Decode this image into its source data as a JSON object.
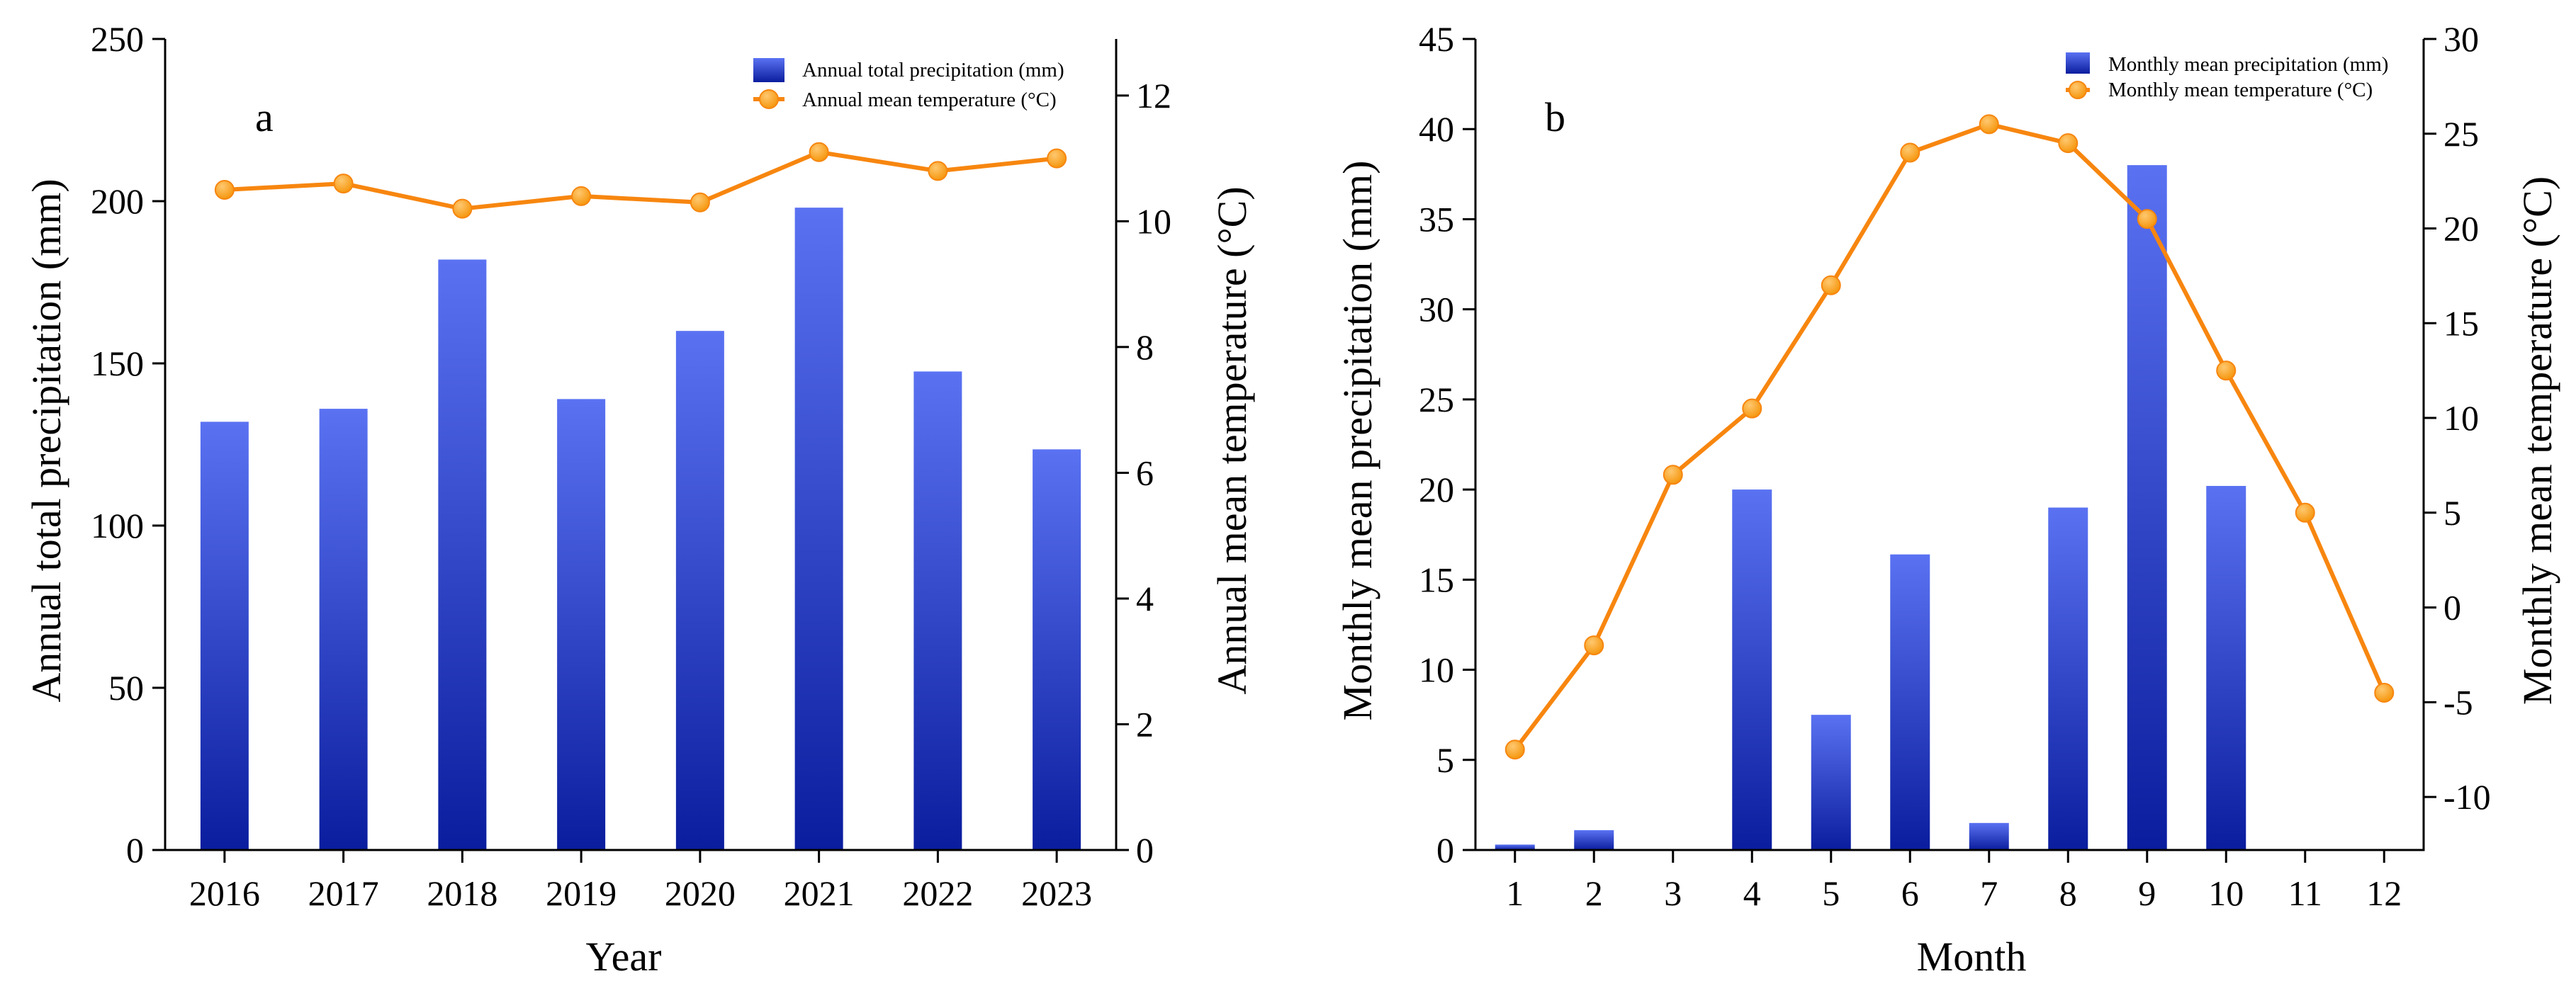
{
  "colors": {
    "bar_light": "#5a72f2",
    "bar_dark": "#0a1d9e",
    "line": "#f7860f",
    "marker_fill": "#f5960c",
    "marker_highlight": "#ffc870"
  },
  "chart_data": [
    {
      "type": "bar",
      "panel_label": "a",
      "categories": [
        "2016",
        "2017",
        "2018",
        "2019",
        "2020",
        "2021",
        "2022",
        "2023"
      ],
      "xlabel": "Year",
      "ylabel": "Annual total precipitation (mm)",
      "ylabel_right": "Annual mean temperature (°C)",
      "ylim": [
        0,
        250
      ],
      "ylim_right": [
        0,
        12.9
      ],
      "yticks": [
        0,
        50,
        100,
        150,
        200,
        250
      ],
      "yticks_right": [
        0,
        2,
        4,
        6,
        8,
        10,
        12
      ],
      "legend_position": "top-right",
      "series": [
        {
          "name": "Annual total precipitation (mm)",
          "kind": "bar",
          "axis": "left",
          "values": [
            132,
            136,
            182,
            139,
            160,
            198,
            147.5,
            123.5
          ]
        },
        {
          "name": "Annual mean temperature (°C)",
          "kind": "line",
          "axis": "right",
          "values": [
            10.5,
            10.6,
            10.2,
            10.4,
            10.3,
            11.1,
            10.8,
            11.0
          ]
        }
      ]
    },
    {
      "type": "bar",
      "panel_label": "b",
      "categories": [
        "1",
        "2",
        "3",
        "4",
        "5",
        "6",
        "7",
        "8",
        "9",
        "10",
        "11",
        "12"
      ],
      "xlabel": "Month",
      "ylabel": "Monthly mean precipitation (mm)",
      "ylabel_right": "Monthly mean temperature (°C)",
      "ylim": [
        0,
        45
      ],
      "ylim_right": [
        -12.8,
        30
      ],
      "yticks": [
        0,
        5,
        10,
        15,
        20,
        25,
        30,
        35,
        40,
        45
      ],
      "yticks_right": [
        -10,
        -5,
        0,
        5,
        10,
        15,
        20,
        25,
        30
      ],
      "legend_position": "top-right",
      "series": [
        {
          "name": "Monthly mean precipitation (mm)",
          "kind": "bar",
          "axis": "left",
          "values": [
            0.3,
            1.1,
            0,
            20,
            7.5,
            16.4,
            1.5,
            19,
            38,
            20.2,
            0,
            0
          ]
        },
        {
          "name": "Monthly mean temperature (°C)",
          "kind": "line",
          "axis": "right",
          "values": [
            -7.5,
            -2,
            7,
            10.5,
            17,
            24,
            25.5,
            24.5,
            20.5,
            12.5,
            5,
            -4.5
          ]
        }
      ]
    }
  ]
}
